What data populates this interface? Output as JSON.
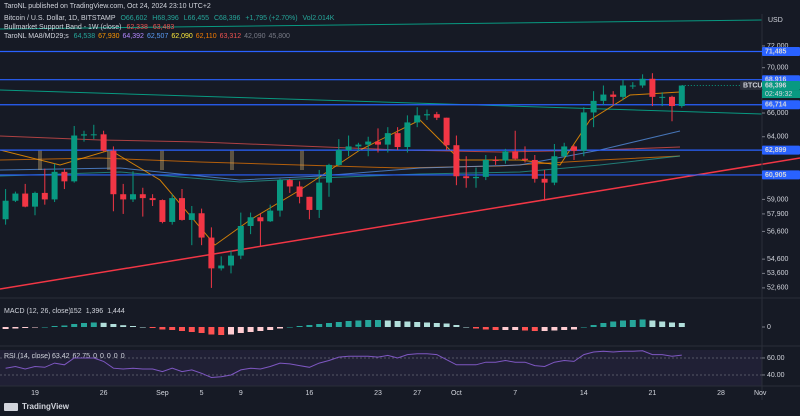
{
  "header": {
    "published": "TaroNL published on TradingView.com, Oct 24, 2024 23:10 UTC+2",
    "symbol": "Bitcoin / U.S. Dollar, 1D, BITSTAMP",
    "ohlc": [
      "O66,602",
      "H68,396",
      "L66,455",
      "C68,396",
      "+1,795 (+2.70%)"
    ],
    "volume": "Vol2.014K",
    "indicator1": "Bullmarket Support Band - 1W (close)",
    "indicator1_values": [
      "62,338",
      "63,483"
    ],
    "indicator2": "TaroNL MA8/MD29;s",
    "indicator2_values": [
      "64,538",
      "67,930",
      "64,392",
      "62,507",
      "62,090",
      "62,110",
      "63,312",
      "42,090",
      "45,800"
    ]
  },
  "currency": "USD",
  "brand": "TradingView",
  "chart_data": [
    {
      "type": "candlestick",
      "categories": [
        null,
        null,
        null,
        "19",
        null,
        null,
        null,
        null,
        null,
        null,
        "26",
        null,
        null,
        null,
        null,
        null,
        "Sep",
        null,
        null,
        null,
        "5",
        null,
        null,
        null,
        "9",
        null,
        null,
        null,
        null,
        null,
        null,
        "16",
        null,
        null,
        null,
        null,
        null,
        null,
        "23",
        null,
        null,
        null,
        "27",
        null,
        null,
        null,
        "Oct",
        null,
        null,
        null,
        null,
        null,
        "7",
        null,
        null,
        null,
        null,
        null,
        null,
        "14",
        null,
        null,
        null,
        null,
        null,
        null,
        "21",
        null,
        null,
        null,
        null,
        null,
        null,
        "28",
        null,
        null,
        null,
        "Nov"
      ],
      "open": [
        57500,
        58900,
        59450,
        58450,
        59500,
        59000,
        61150,
        60400,
        64100,
        64200,
        64200,
        62850,
        59400,
        59000,
        59400,
        59100,
        58950,
        57300,
        59100,
        57450,
        57950,
        56150,
        53950,
        54150,
        54850,
        57000,
        57650,
        57350,
        58150,
        60500,
        60000,
        59200,
        58200,
        60300,
        61700,
        62900,
        63200,
        63350,
        63600,
        63350,
        64300,
        63150,
        65200,
        65800,
        65900,
        65600,
        63300,
        60800,
        60650,
        60750,
        62100,
        62050,
        62800,
        62200,
        62100,
        60600,
        60300,
        62400,
        63200,
        62850,
        66050,
        67050,
        67600,
        67400,
        68400,
        68400,
        69000,
        67400,
        67400,
        66602,
        null,
        null,
        null,
        null,
        null,
        null,
        null,
        null
      ],
      "high": [
        59800,
        59600,
        60200,
        59600,
        61400,
        61800,
        61400,
        64900,
        64500,
        65000,
        64500,
        63200,
        60200,
        61200,
        59900,
        59400,
        59000,
        59400,
        59800,
        58500,
        58300,
        56900,
        54800,
        55200,
        58000,
        58000,
        57950,
        58600,
        60600,
        60600,
        60400,
        59200,
        61300,
        61800,
        63800,
        64100,
        63500,
        64000,
        64700,
        64800,
        64800,
        65800,
        66500,
        66300,
        66100,
        65600,
        64100,
        62400,
        61500,
        62500,
        62400,
        63000,
        64500,
        63200,
        62500,
        61300,
        63400,
        63500,
        63300,
        66500,
        67900,
        68400,
        67900,
        68900,
        68700,
        69400,
        69500,
        67800,
        67500,
        68396,
        null,
        null,
        null,
        null,
        null,
        null,
        null,
        null
      ],
      "low": [
        57100,
        58800,
        58400,
        57800,
        58600,
        58800,
        59800,
        60300,
        63600,
        63800,
        62800,
        58100,
        57900,
        58800,
        57700,
        58500,
        57200,
        57100,
        57400,
        55600,
        55600,
        52600,
        53800,
        53600,
        54600,
        56400,
        55500,
        57300,
        57700,
        59500,
        58700,
        57500,
        57600,
        59200,
        61600,
        62400,
        62800,
        62400,
        62700,
        62700,
        62900,
        62700,
        64800,
        65400,
        65400,
        62900,
        60100,
        59900,
        59900,
        60500,
        61700,
        61800,
        62100,
        61900,
        60300,
        58900,
        60100,
        62300,
        62100,
        62400,
        64800,
        66700,
        66700,
        67100,
        68100,
        68200,
        66600,
        66600,
        65300,
        66455,
        null,
        null,
        null,
        null,
        null,
        null,
        null,
        null
      ],
      "close": [
        58900,
        59450,
        58450,
        59500,
        59000,
        61150,
        60400,
        64100,
        64200,
        64200,
        62850,
        59400,
        59000,
        59400,
        59100,
        58950,
        57300,
        59100,
        57450,
        57950,
        56150,
        53950,
        54150,
        54850,
        57000,
        57650,
        57350,
        58150,
        60500,
        60000,
        59200,
        58200,
        60300,
        61700,
        62900,
        63200,
        63350,
        63600,
        63350,
        64300,
        63150,
        65200,
        65800,
        65900,
        65600,
        63300,
        60800,
        60650,
        60750,
        62100,
        62050,
        62800,
        62200,
        62100,
        60600,
        60300,
        62400,
        63200,
        62850,
        66050,
        67050,
        67600,
        67400,
        68400,
        68400,
        69000,
        67400,
        67400,
        66601,
        68396,
        null,
        null,
        null,
        null,
        null,
        null,
        null,
        null
      ],
      "colors": {
        "up": "#089981",
        "down": "#f23645"
      },
      "log_scale": true,
      "ylim": [
        52050,
        75050
      ],
      "yticks": [
        {
          "value": 72000,
          "label": "72,000"
        },
        {
          "value": 70000,
          "label": "70,000"
        },
        {
          "value": 66000,
          "label": "66,000"
        },
        {
          "value": 64000,
          "label": "64,000"
        },
        {
          "value": 59000,
          "label": "59,000"
        },
        {
          "value": 57900,
          "label": "57,900"
        },
        {
          "value": 56600,
          "label": "56,600"
        },
        {
          "value": 54600,
          "label": "54,600"
        },
        {
          "value": 53600,
          "label": "53,600"
        },
        {
          "value": 52600,
          "label": "52,600"
        }
      ],
      "price_lines": [
        {
          "value": 71485,
          "label": "71,485"
        },
        {
          "value": 68916,
          "label": "68,916"
        },
        {
          "value": 66714,
          "label": "66,714"
        },
        {
          "value": 62899,
          "label": "62,899"
        },
        {
          "value": 60905,
          "label": "60,905"
        }
      ],
      "price_line_color": "#2962ff",
      "last_price": {
        "symbol": "BTCUSD",
        "value": 68396,
        "label": "68,396",
        "countdown": "02:49:32"
      }
    },
    {
      "type": "bar",
      "title": "MACD (12, 26, close)",
      "readings": [
        "152",
        "1,396",
        "1,444"
      ],
      "values": [
        -200,
        -150,
        -100,
        -50,
        0,
        100,
        150,
        300,
        400,
        450,
        420,
        300,
        180,
        100,
        0,
        -100,
        -250,
        -300,
        -400,
        -500,
        -600,
        -750,
        -800,
        -750,
        -600,
        -500,
        -400,
        -300,
        -150,
        0,
        100,
        200,
        300,
        400,
        500,
        600,
        650,
        700,
        700,
        650,
        600,
        550,
        500,
        450,
        400,
        350,
        200,
        0,
        -150,
        -250,
        -300,
        -300,
        -300,
        -350,
        -400,
        -400,
        -350,
        -300,
        -250,
        0,
        200,
        400,
        550,
        650,
        700,
        750,
        650,
        550,
        450,
        400,
        null,
        null,
        null,
        null,
        null,
        null,
        null,
        null
      ],
      "colors": {
        "rising_positive": "#26a69a",
        "falling_positive": "#b2dfdb",
        "falling_negative": "#ff5252",
        "rising_negative": "#ffcdd2"
      },
      "ylim": [
        -1500,
        2500
      ],
      "yticks": [
        0
      ]
    },
    {
      "type": "line",
      "title": "RSI (14, close)",
      "readings": [
        "63.42",
        "62.75",
        "0",
        "0",
        "0",
        "0",
        "0"
      ],
      "values": [
        48,
        50,
        47,
        50,
        49,
        54,
        52,
        60,
        60,
        60,
        56,
        48,
        47,
        48,
        47,
        47,
        44,
        48,
        44,
        46,
        42,
        37,
        38,
        40,
        46,
        48,
        47,
        50,
        54,
        53,
        51,
        49,
        54,
        57,
        61,
        62,
        62,
        62,
        61,
        63,
        60,
        64,
        65,
        65,
        64,
        58,
        52,
        52,
        52,
        55,
        55,
        57,
        55,
        55,
        51,
        50,
        55,
        57,
        56,
        64,
        67,
        68,
        67,
        68,
        68,
        68.5,
        64,
        64,
        62,
        63.42,
        null,
        null,
        null,
        null,
        null,
        null,
        null,
        null
      ],
      "color": "#7e57c2",
      "ylim": [
        27,
        69.4
      ],
      "yticks": [
        {
          "value": 60,
          "label": "60.00"
        },
        {
          "value": 40,
          "label": "40.00"
        }
      ]
    }
  ]
}
